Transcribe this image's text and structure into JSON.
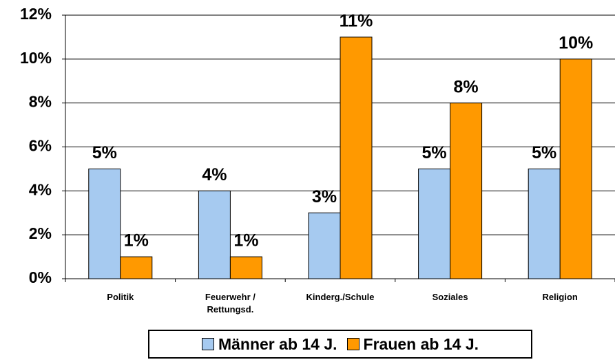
{
  "chart_data": {
    "type": "bar",
    "categories": [
      "Politik",
      "Feuerwehr / Rettungsd.",
      "Kinderg./Schule",
      "Soziales",
      "Religion"
    ],
    "series": [
      {
        "name": "Männer ab 14 J.",
        "color": "#a6caf0",
        "values": [
          5,
          4,
          3,
          5,
          5
        ],
        "value_labels": [
          "5%",
          "4%",
          "3%",
          "5%",
          "5%"
        ]
      },
      {
        "name": "Frauen ab 14 J.",
        "color": "#ff9900",
        "values": [
          1,
          1,
          11,
          8,
          10
        ],
        "value_labels": [
          "1%",
          "1%",
          "11%",
          "8%",
          "10%"
        ]
      }
    ],
    "ylim": [
      0,
      12
    ],
    "yticks": [
      {
        "value": 0,
        "label": "0%"
      },
      {
        "value": 2,
        "label": "2%"
      },
      {
        "value": 4,
        "label": "4%"
      },
      {
        "value": 6,
        "label": "6%"
      },
      {
        "value": 8,
        "label": "8%"
      },
      {
        "value": 10,
        "label": "10%"
      },
      {
        "value": 12,
        "label": "12%"
      }
    ],
    "grid": true
  }
}
